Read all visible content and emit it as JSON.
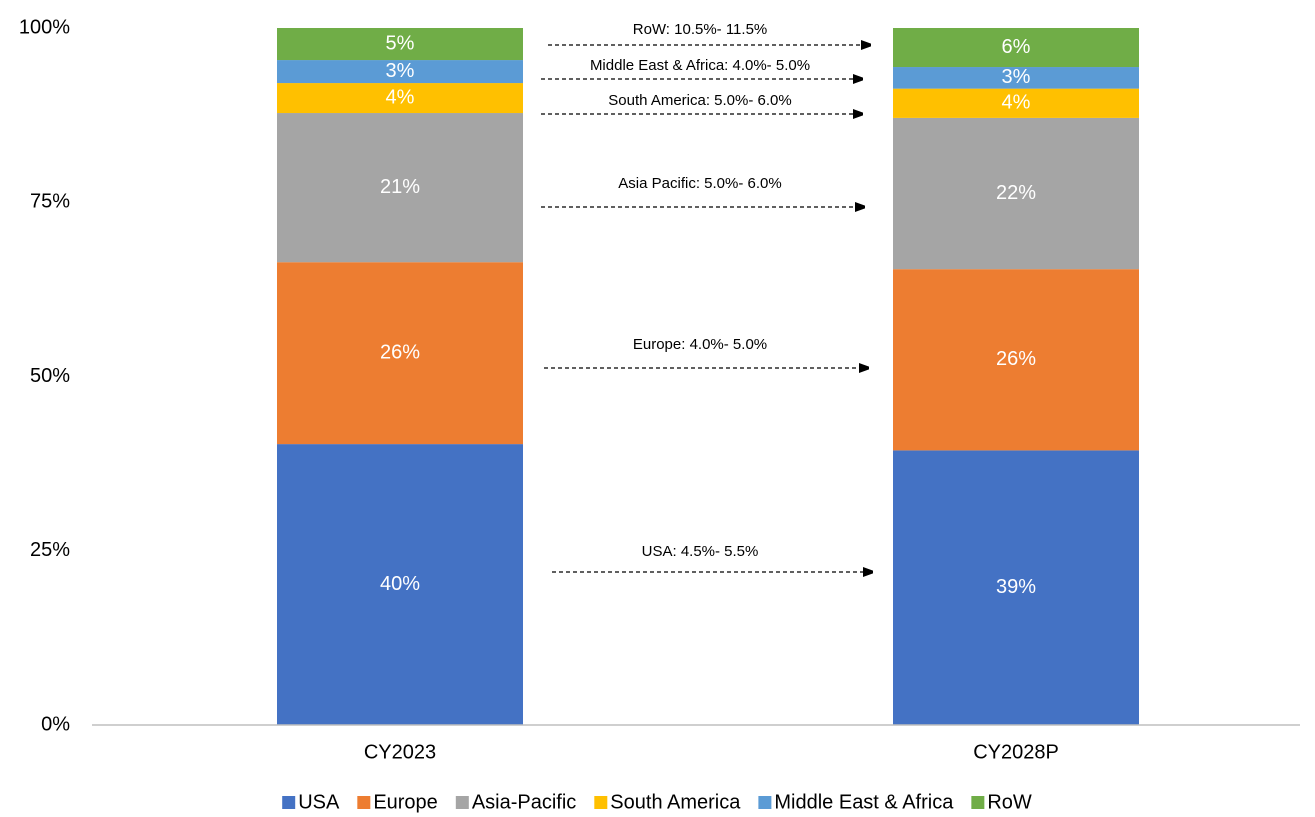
{
  "chart_data": {
    "type": "stacked_bar",
    "categories": [
      "CY2023",
      "CY2028P"
    ],
    "series": [
      {
        "name": "USA",
        "color": "#4472c4",
        "values": [
          40.3,
          39.4
        ],
        "value_labels": [
          "40%",
          "39%"
        ]
      },
      {
        "name": "Europe",
        "color": "#ed7d31",
        "values": [
          26.1,
          26.0
        ],
        "value_labels": [
          "26%",
          "26%"
        ]
      },
      {
        "name": "Asia-Pacific",
        "color": "#a5a5a5",
        "values": [
          21.4,
          21.7
        ],
        "value_labels": [
          "21%",
          "22%"
        ]
      },
      {
        "name": "South America",
        "color": "#ffc000",
        "values": [
          4.3,
          4.2
        ],
        "value_labels": [
          "4%",
          "4%"
        ]
      },
      {
        "name": "Middle East & Africa",
        "color": "#5b9bd5",
        "values": [
          3.3,
          3.1
        ],
        "value_labels": [
          "3%",
          "3%"
        ]
      },
      {
        "name": "RoW",
        "color": "#70ad47",
        "values": [
          4.6,
          5.6
        ],
        "value_labels": [
          "5%",
          "6%"
        ]
      }
    ],
    "annotations": [
      "USA: 4.5%- 5.5%",
      "Europe: 4.0%- 5.0%",
      "Asia Pacific: 5.0%- 6.0%",
      "South America: 5.0%- 6.0%",
      "Middle East & Africa: 4.0%- 5.0%",
      "RoW: 10.5%- 11.5%"
    ],
    "ylim": [
      0,
      100
    ],
    "yticks": [
      {
        "value": 0,
        "label": "0%"
      },
      {
        "value": 25,
        "label": "25%"
      },
      {
        "value": 50,
        "label": "50%"
      },
      {
        "value": 75,
        "label": "75%"
      },
      {
        "value": 100,
        "label": "100%"
      }
    ],
    "grid": false,
    "legend": "bottom"
  }
}
